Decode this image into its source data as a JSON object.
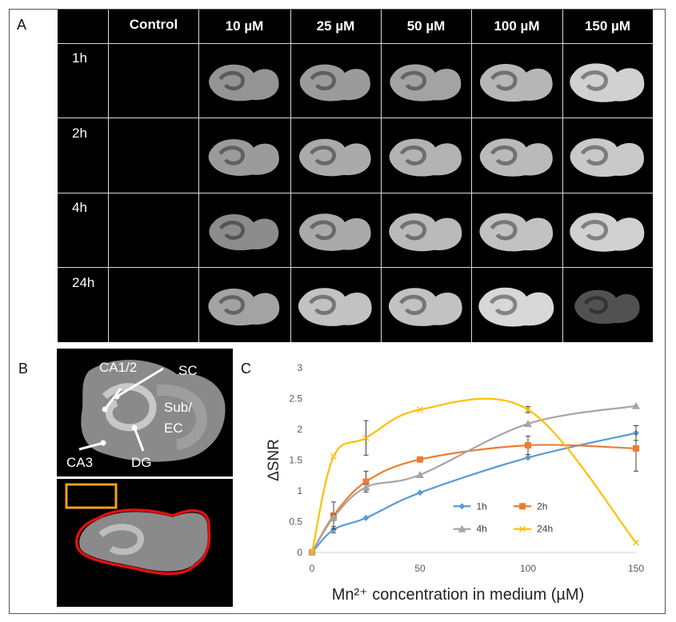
{
  "panels": {
    "a": "A",
    "b": "B",
    "c": "C"
  },
  "panel_a": {
    "columns": [
      "Control",
      "10 µM",
      "25 µM",
      "50 µM",
      "100 µM",
      "150 µM"
    ],
    "rows": [
      "1h",
      "2h",
      "4h",
      "24h"
    ],
    "brightness": [
      [
        0.0,
        0.55,
        0.6,
        0.65,
        0.78,
        0.95
      ],
      [
        0.0,
        0.6,
        0.7,
        0.75,
        0.8,
        0.9
      ],
      [
        0.0,
        0.5,
        0.7,
        0.8,
        0.85,
        0.95
      ],
      [
        0.0,
        0.65,
        0.85,
        0.85,
        1.0,
        0.12
      ]
    ]
  },
  "panel_b": {
    "labels": [
      "CA1/2",
      "SC",
      "Sub/",
      "EC",
      "CA3",
      "DG"
    ]
  },
  "chart_data": {
    "type": "line",
    "xlabel": "Mn²⁺ concentration in medium (µM)",
    "ylabel": "ΔSNR",
    "xlim": [
      0,
      150
    ],
    "ylim": [
      0,
      3
    ],
    "xticks": [
      0,
      50,
      100,
      150
    ],
    "yticks": [
      "0",
      "0.5",
      "1",
      "1.5",
      "2",
      "2.5",
      "3"
    ],
    "legend_position": "bottom-right",
    "x": [
      0,
      10,
      25,
      50,
      100,
      150
    ],
    "series": [
      {
        "name": "1h",
        "color": "#5b9bd5",
        "marker": "diamond",
        "values": [
          0,
          0.37,
          0.56,
          0.97,
          1.54,
          1.94
        ],
        "errors": [
          0,
          0.05,
          0.03,
          0.03,
          0.03,
          0.12
        ]
      },
      {
        "name": "2h",
        "color": "#ed7d31",
        "marker": "square",
        "values": [
          0,
          0.6,
          1.15,
          1.51,
          1.74,
          1.69
        ],
        "errors": [
          0,
          0.22,
          0.17,
          0.03,
          0.15,
          0.37
        ]
      },
      {
        "name": "4h",
        "color": "#a5a5a5",
        "marker": "triangle",
        "values": [
          0,
          0.57,
          1.06,
          1.26,
          2.09,
          2.38
        ],
        "errors": [
          0,
          0.05,
          0.05,
          0.03,
          0.03,
          0.03
        ]
      },
      {
        "name": "24h",
        "color": "#ffc000",
        "marker": "x",
        "values": [
          0,
          1.56,
          1.86,
          2.32,
          2.32,
          0.16
        ],
        "errors": [
          0,
          0.03,
          0.28,
          0.03,
          0.05,
          0.03
        ]
      }
    ]
  }
}
